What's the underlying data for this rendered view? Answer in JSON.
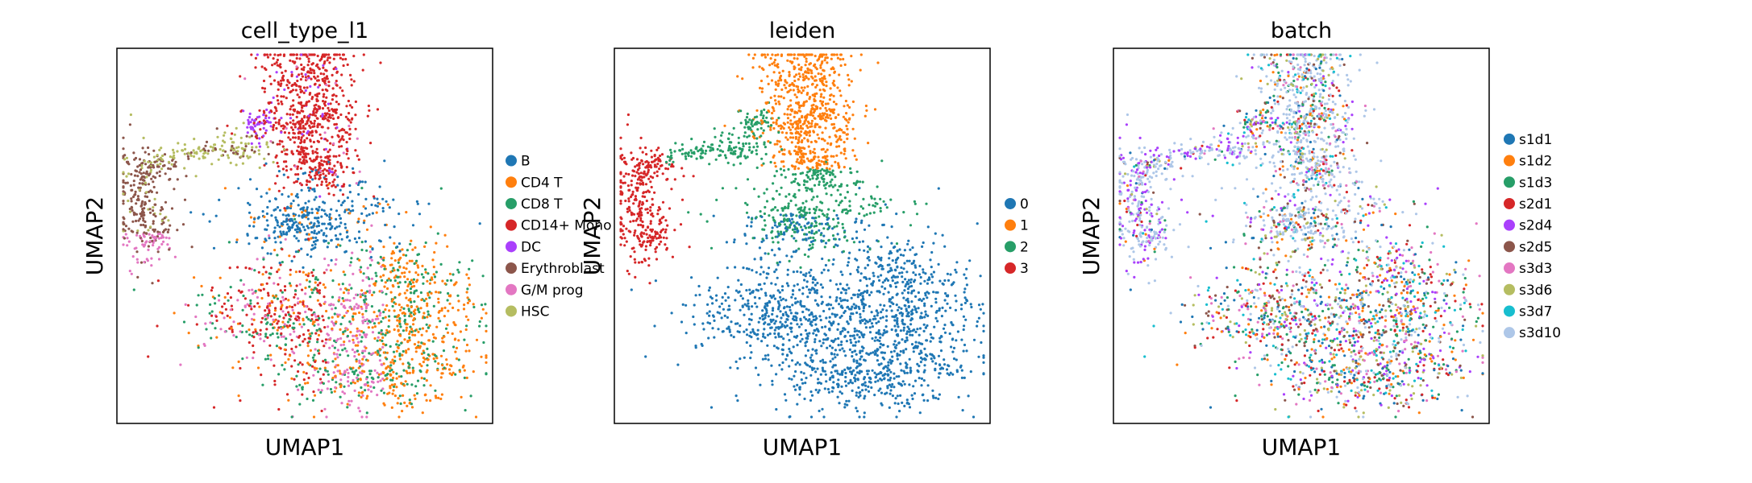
{
  "chart_data": [
    {
      "type": "scatter",
      "title": "cell_type_l1",
      "xlabel": "UMAP1",
      "ylabel": "UMAP2",
      "grid": false,
      "legend": "right",
      "series": [
        {
          "name": "B",
          "color": "#1f77b4"
        },
        {
          "name": "CD4 T",
          "color": "#ff7f0e"
        },
        {
          "name": "CD8 T",
          "color": "#279e68"
        },
        {
          "name": "CD14+ Mono",
          "color": "#d62728"
        },
        {
          "name": "DC",
          "color": "#aa40fc"
        },
        {
          "name": "Erythroblast",
          "color": "#8c564b"
        },
        {
          "name": "G/M prog",
          "color": "#e377c2"
        },
        {
          "name": "HSC",
          "color": "#b5bd61"
        }
      ]
    },
    {
      "type": "scatter",
      "title": "leiden",
      "xlabel": "UMAP1",
      "ylabel": "UMAP2",
      "grid": false,
      "legend": "right",
      "series": [
        {
          "name": "0",
          "color": "#1f77b4"
        },
        {
          "name": "1",
          "color": "#ff7f0e"
        },
        {
          "name": "2",
          "color": "#279e68"
        },
        {
          "name": "3",
          "color": "#d62728"
        }
      ]
    },
    {
      "type": "scatter",
      "title": "batch",
      "xlabel": "UMAP1",
      "ylabel": "UMAP2",
      "grid": false,
      "legend": "right",
      "series": [
        {
          "name": "s1d1",
          "color": "#1f77b4"
        },
        {
          "name": "s1d2",
          "color": "#ff7f0e"
        },
        {
          "name": "s1d3",
          "color": "#279e68"
        },
        {
          "name": "s2d1",
          "color": "#d62728"
        },
        {
          "name": "s2d4",
          "color": "#aa40fc"
        },
        {
          "name": "s2d5",
          "color": "#8c564b"
        },
        {
          "name": "s3d3",
          "color": "#e377c2"
        },
        {
          "name": "s3d6",
          "color": "#b5bd61"
        },
        {
          "name": "s3d7",
          "color": "#17becf"
        },
        {
          "name": "s3d10",
          "color": "#aec7e8"
        }
      ]
    }
  ]
}
